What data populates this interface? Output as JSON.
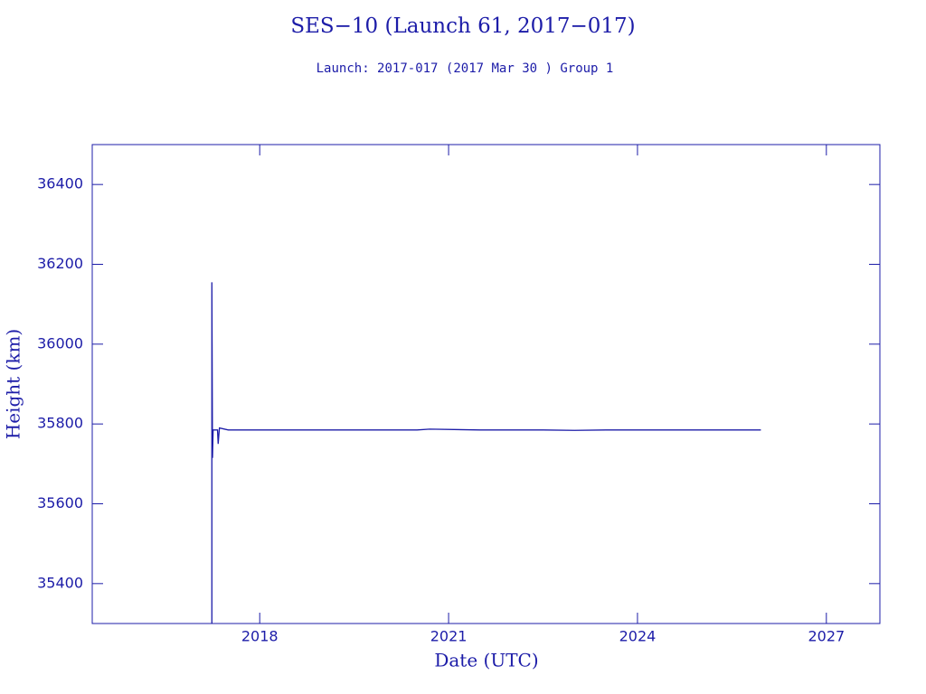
{
  "chart_data": {
    "type": "line",
    "title": "SES−10 (Launch 61, 2017−017)",
    "subtitle": "Launch: 2017-017  (2017 Mar 30 )  Group 1",
    "x_label": "Date (UTC)",
    "y_label": "Height (km)",
    "xlim": [
      2015.34,
      2027.85
    ],
    "xticks": [
      2018,
      2021,
      2024,
      2027
    ],
    "ylim": [
      35300,
      36500
    ],
    "yticks": [
      35400,
      35600,
      35800,
      36000,
      36200,
      36400
    ],
    "series": [
      {
        "color": "#1c1ca8",
        "x": [
          2017.24,
          2017.24,
          2017.25,
          2017.26,
          2017.33,
          2017.34,
          2017.36,
          2017.5,
          2018.5,
          2019.5,
          2020.5,
          2020.7,
          2021.5,
          2022.5,
          2023.0,
          2023.5,
          2024.5,
          2025.5,
          2025.96
        ],
        "values": [
          35300,
          36155,
          35715,
          35785,
          35785,
          35750,
          35790,
          35785,
          35785,
          35785,
          35785,
          35787,
          35785,
          35785,
          35784,
          35785,
          35785,
          35785,
          35785
        ]
      }
    ]
  }
}
